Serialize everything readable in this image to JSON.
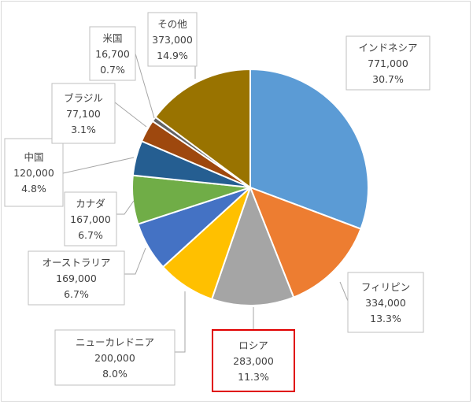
{
  "chart_data": {
    "type": "pie",
    "title": "",
    "start_angle_deg": 0,
    "direction": "clockwise",
    "legend": "none",
    "slices": [
      {
        "label": "インドネシア",
        "value": 771000,
        "value_label": "771,000",
        "percent_label": "30.7%",
        "color": "#5b9bd5"
      },
      {
        "label": "フィリピン",
        "value": 334000,
        "value_label": "334,000",
        "percent_label": "13.3%",
        "color": "#ed7d31"
      },
      {
        "label": "ロシア",
        "value": 283000,
        "value_label": "283,000",
        "percent_label": "11.3%",
        "color": "#a5a5a5",
        "highlighted": true
      },
      {
        "label": "ニューカレドニア",
        "value": 200000,
        "value_label": "200,000",
        "percent_label": "8.0%",
        "color": "#ffc000"
      },
      {
        "label": "オーストラリア",
        "value": 169000,
        "value_label": "169,000",
        "percent_label": "6.7%",
        "color": "#4472c4"
      },
      {
        "label": "カナダ",
        "value": 167000,
        "value_label": "167,000",
        "percent_label": "6.7%",
        "color": "#70ad47"
      },
      {
        "label": "中国",
        "value": 120000,
        "value_label": "120,000",
        "percent_label": "4.8%",
        "color": "#255e91"
      },
      {
        "label": "ブラジル",
        "value": 77100,
        "value_label": "77,100",
        "percent_label": "3.1%",
        "color": "#9e480e"
      },
      {
        "label": "米国",
        "value": 16700,
        "value_label": "16,700",
        "percent_label": "0.7%",
        "color": "#636363"
      },
      {
        "label": "その他",
        "value": 373000,
        "value_label": "373,000",
        "percent_label": "14.9%",
        "color": "#997300"
      }
    ]
  }
}
